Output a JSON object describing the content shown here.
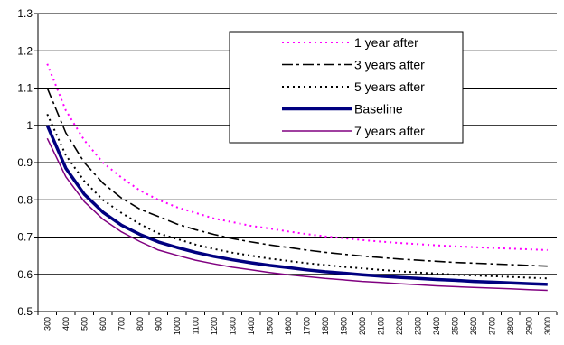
{
  "chart_data": {
    "type": "line",
    "title": "",
    "xlabel": "",
    "ylabel": "",
    "ylim": [
      0.5,
      1.3
    ],
    "yticks": [
      "0.5",
      "0.6",
      "0.7",
      "0.8",
      "0.9",
      "1",
      "1.1",
      "1.2",
      "1.3"
    ],
    "grid": "horizontal",
    "legend_position": "top-right",
    "x": [
      "300",
      "400",
      "500",
      "600",
      "700",
      "800",
      "900",
      "1000",
      "1100",
      "1200",
      "1300",
      "1400",
      "1500",
      "1600",
      "1700",
      "1800",
      "1900",
      "2000",
      "2100",
      "2200",
      "2300",
      "2400",
      "2500",
      "2600",
      "2700",
      "2800",
      "2900",
      "3000"
    ],
    "series": [
      {
        "name": "1 year after",
        "color": "#ff00ff",
        "style": "dotted",
        "values": [
          1.165,
          1.04,
          0.96,
          0.9,
          0.86,
          0.825,
          0.8,
          0.78,
          0.765,
          0.75,
          0.74,
          0.73,
          0.723,
          0.715,
          0.708,
          0.702,
          0.697,
          0.692,
          0.688,
          0.684,
          0.681,
          0.678,
          0.675,
          0.673,
          0.671,
          0.669,
          0.667,
          0.665
        ]
      },
      {
        "name": "3 years after",
        "color": "#000000",
        "style": "dash-dot",
        "values": [
          1.1,
          0.98,
          0.9,
          0.845,
          0.805,
          0.775,
          0.755,
          0.735,
          0.72,
          0.707,
          0.696,
          0.687,
          0.679,
          0.672,
          0.665,
          0.659,
          0.654,
          0.649,
          0.645,
          0.641,
          0.638,
          0.635,
          0.632,
          0.63,
          0.628,
          0.626,
          0.624,
          0.622
        ]
      },
      {
        "name": "5 years after",
        "color": "#000000",
        "style": "dotted",
        "values": [
          1.03,
          0.92,
          0.85,
          0.8,
          0.765,
          0.735,
          0.71,
          0.695,
          0.68,
          0.668,
          0.658,
          0.65,
          0.642,
          0.636,
          0.63,
          0.625,
          0.62,
          0.616,
          0.612,
          0.608,
          0.605,
          0.602,
          0.599,
          0.597,
          0.595,
          0.593,
          0.591,
          0.589
        ]
      },
      {
        "name": "Baseline",
        "color": "#000080",
        "style": "thick",
        "values": [
          1.0,
          0.885,
          0.815,
          0.767,
          0.732,
          0.707,
          0.687,
          0.672,
          0.659,
          0.648,
          0.639,
          0.631,
          0.624,
          0.618,
          0.612,
          0.607,
          0.603,
          0.599,
          0.595,
          0.592,
          0.589,
          0.586,
          0.584,
          0.581,
          0.579,
          0.577,
          0.575,
          0.573
        ]
      },
      {
        "name": "7 years after",
        "color": "#800080",
        "style": "solid",
        "values": [
          0.965,
          0.862,
          0.795,
          0.748,
          0.714,
          0.688,
          0.665,
          0.651,
          0.638,
          0.628,
          0.619,
          0.612,
          0.605,
          0.599,
          0.594,
          0.589,
          0.585,
          0.581,
          0.578,
          0.575,
          0.572,
          0.569,
          0.567,
          0.565,
          0.563,
          0.561,
          0.559,
          0.557
        ]
      }
    ]
  }
}
